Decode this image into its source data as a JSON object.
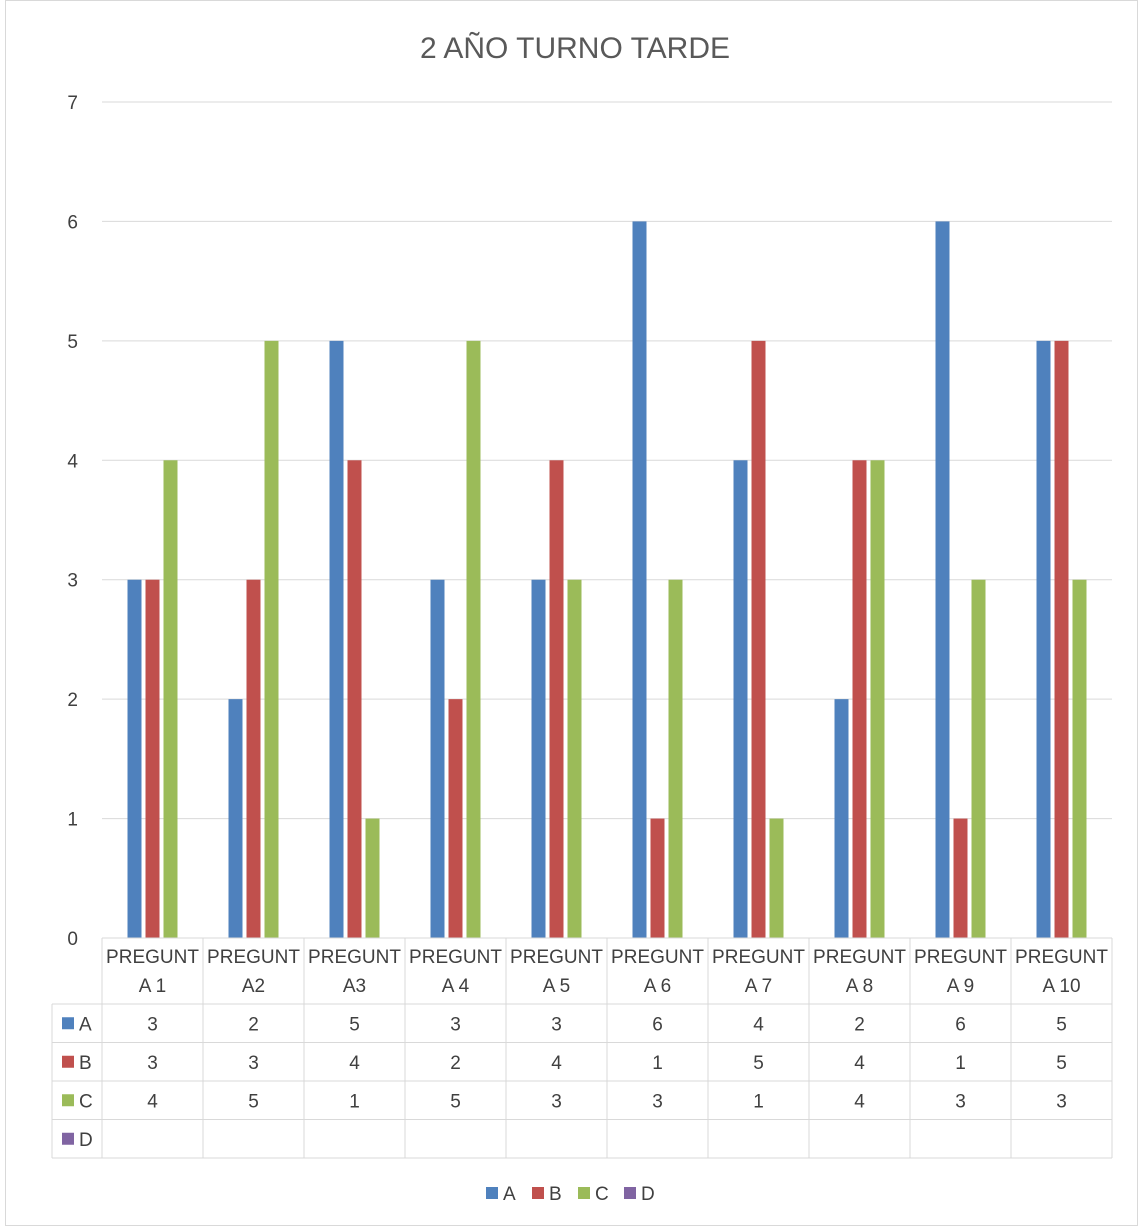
{
  "chart_data": {
    "type": "bar",
    "title": "2 AÑO TURNO TARDE",
    "categories": [
      [
        "PREGUNT",
        "A 1"
      ],
      [
        "PREGUNT",
        "A2"
      ],
      [
        "PREGUNT",
        "A3"
      ],
      [
        "PREGUNT",
        "A 4"
      ],
      [
        "PREGUNT",
        "A 5"
      ],
      [
        "PREGUNT",
        "A 6"
      ],
      [
        "PREGUNT",
        "A 7"
      ],
      [
        "PREGUNT",
        "A 8"
      ],
      [
        "PREGUNT",
        "A 9"
      ],
      [
        "PREGUNT",
        "A 10"
      ]
    ],
    "series": [
      {
        "name": "A",
        "color": "#4f81bd",
        "values": [
          3,
          2,
          5,
          3,
          3,
          6,
          4,
          2,
          6,
          5
        ]
      },
      {
        "name": "B",
        "color": "#c0504d",
        "values": [
          3,
          3,
          4,
          2,
          4,
          1,
          5,
          4,
          1,
          5
        ]
      },
      {
        "name": "C",
        "color": "#9bbb59",
        "values": [
          4,
          5,
          1,
          5,
          3,
          3,
          1,
          4,
          3,
          3
        ]
      },
      {
        "name": "D",
        "color": "#8064a2",
        "values": [
          null,
          null,
          null,
          null,
          null,
          null,
          null,
          null,
          null,
          null
        ]
      }
    ],
    "ylim": [
      0,
      7
    ],
    "yticks": [
      0,
      1,
      2,
      3,
      4,
      5,
      6,
      7
    ],
    "grid": true,
    "data_table": true,
    "legend": "bottom"
  }
}
